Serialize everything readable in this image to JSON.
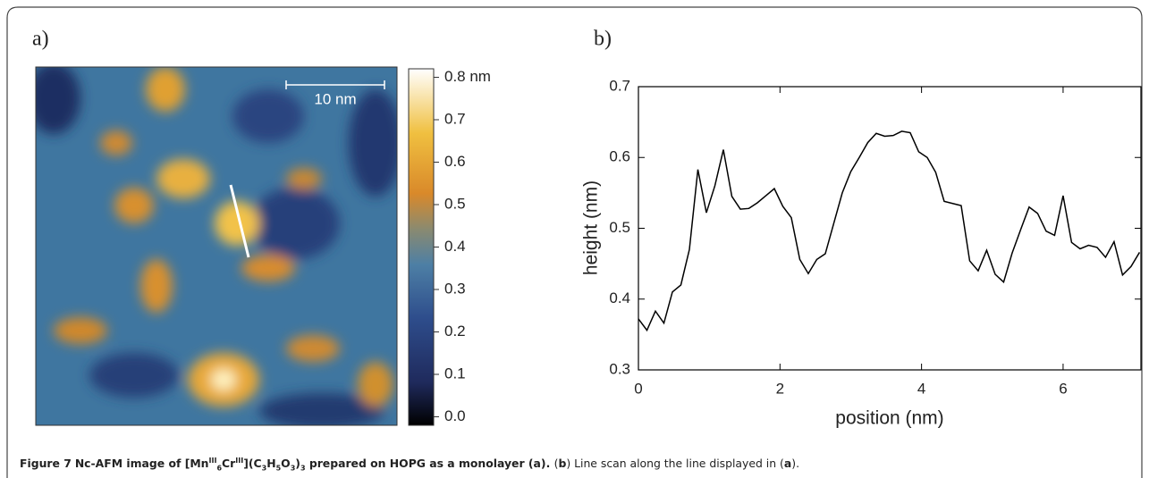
{
  "image": {
    "label": "a)",
    "scale_bar": "10 nm",
    "colorbar": {
      "lim": [
        -0.02,
        0.82
      ],
      "ticks": [
        {
          "value": 0,
          "label": "0.0"
        },
        0.1,
        0.2,
        0.3,
        0.4,
        0.5,
        0.6,
        0.7,
        {
          "value": 0.8,
          "label": "0.8 nm"
        }
      ]
    }
  },
  "chart_data": {
    "type": "line",
    "label": "b)",
    "x_label": "position (nm)",
    "y_label": "height (nm)",
    "color": "#000000",
    "x": [
      0,
      0.12,
      0.24,
      0.36,
      0.48,
      0.6,
      0.72,
      0.84,
      0.96,
      1.08,
      1.2,
      1.32,
      1.44,
      1.56,
      1.68,
      1.8,
      1.92,
      2.04,
      2.16,
      2.28,
      2.4,
      2.52,
      2.64,
      2.76,
      2.88,
      3,
      3.12,
      3.24,
      3.36,
      3.48,
      3.6,
      3.72,
      3.84,
      3.96,
      4.08,
      4.2,
      4.32,
      4.44,
      4.56,
      4.68,
      4.8,
      4.92,
      5.04,
      5.16,
      5.28,
      5.4,
      5.52,
      5.64,
      5.76,
      5.88,
      6,
      6.12,
      6.24,
      6.36,
      6.48,
      6.6,
      6.72,
      6.84,
      6.96,
      7.08
    ],
    "values": [
      0.372,
      0.356,
      0.383,
      0.366,
      0.41,
      0.42,
      0.47,
      0.583,
      0.522,
      0.56,
      0.611,
      0.545,
      0.527,
      0.528,
      0.536,
      0.546,
      0.556,
      0.531,
      0.515,
      0.456,
      0.436,
      0.456,
      0.464,
      0.507,
      0.55,
      0.58,
      0.6,
      0.621,
      0.634,
      0.63,
      0.631,
      0.637,
      0.635,
      0.608,
      0.6,
      0.579,
      0.538,
      0.535,
      0.532,
      0.454,
      0.44,
      0.469,
      0.435,
      0.424,
      0.465,
      0.498,
      0.53,
      0.521,
      0.496,
      0.49,
      0.546,
      0.48,
      0.471,
      0.476,
      0.473,
      0.459,
      0.481,
      0.434,
      0.446,
      0.466
    ],
    "xlim": [
      0,
      7.1
    ],
    "ylim": [
      0.3,
      0.7
    ],
    "xticks": [
      0,
      2,
      4,
      6
    ],
    "yticks": [
      0.3,
      0.4,
      0.5,
      0.6,
      0.7
    ]
  },
  "caption": {
    "label": "Figure 7",
    "parts": [
      "Nc-AFM image of [Mn",
      "III",
      "6",
      "Cr",
      "III",
      "](C",
      "3",
      "H",
      "5",
      "O",
      "3",
      ")",
      "3",
      " prepared on HOPG as a monolayer (",
      "a",
      "). ",
      "(",
      "b",
      ") Line scan along the line displayed in (",
      "a",
      ")."
    ]
  }
}
